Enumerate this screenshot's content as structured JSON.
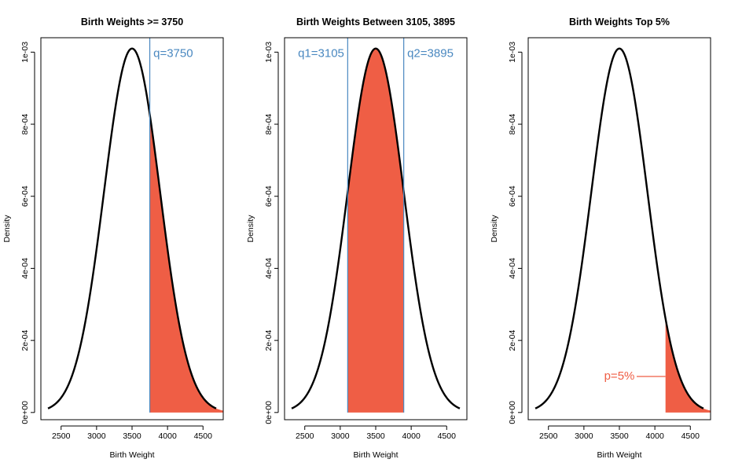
{
  "colors": {
    "fill": "#EF5E45",
    "qline": "#4A88C0",
    "curve": "#000000"
  },
  "chart_data": [
    {
      "type": "area",
      "title": "Birth Weights >= 3750",
      "xlabel": "Birth Weight",
      "ylabel": "Density",
      "distribution": {
        "kind": "normal",
        "mean": 3500,
        "sd": 395
      },
      "curve_x_range": [
        2315,
        4685
      ],
      "xlim": [
        2215,
        4785
      ],
      "ylim": [
        -2e-05,
        0.00104
      ],
      "x_ticks": [
        2500,
        3000,
        3500,
        4000,
        4500
      ],
      "y_ticks": [
        "0e+00",
        "2e-04",
        "4e-04",
        "6e-04",
        "8e-04",
        "1e-03"
      ],
      "y_tick_values": [
        0,
        0.0002,
        0.0004,
        0.0006,
        0.0008,
        0.001
      ],
      "shaded_region": [
        3750,
        4785
      ],
      "vlines": [
        3750
      ],
      "annotations": [
        {
          "text": "q=3750",
          "color": "#4A88C0",
          "x": 4080,
          "y": 0.000995
        }
      ]
    },
    {
      "type": "area",
      "title": "Birth Weights Between 3105, 3895",
      "xlabel": "Birth Weight",
      "ylabel": "Density",
      "distribution": {
        "kind": "normal",
        "mean": 3500,
        "sd": 395
      },
      "curve_x_range": [
        2315,
        4685
      ],
      "xlim": [
        2215,
        4785
      ],
      "ylim": [
        -2e-05,
        0.00104
      ],
      "x_ticks": [
        2500,
        3000,
        3500,
        4000,
        4500
      ],
      "y_ticks": [
        "0e+00",
        "2e-04",
        "4e-04",
        "6e-04",
        "8e-04",
        "1e-03"
      ],
      "y_tick_values": [
        0,
        0.0002,
        0.0004,
        0.0006,
        0.0008,
        0.001
      ],
      "shaded_region": [
        3105,
        3895
      ],
      "vlines": [
        3105,
        3895
      ],
      "annotations": [
        {
          "text": "q1=3105",
          "color": "#4A88C0",
          "x": 2730,
          "y": 0.000995
        },
        {
          "text": "q2=3895",
          "color": "#4A88C0",
          "x": 4270,
          "y": 0.000995
        }
      ]
    },
    {
      "type": "area",
      "title": "Birth Weights Top 5%",
      "xlabel": "Birth Weight",
      "ylabel": "Density",
      "distribution": {
        "kind": "normal",
        "mean": 3500,
        "sd": 395
      },
      "curve_x_range": [
        2315,
        4685
      ],
      "xlim": [
        2215,
        4785
      ],
      "ylim": [
        -2e-05,
        0.00104
      ],
      "x_ticks": [
        2500,
        3000,
        3500,
        4000,
        4500
      ],
      "y_ticks": [
        "0e+00",
        "2e-04",
        "4e-04",
        "6e-04",
        "8e-04",
        "1e-03"
      ],
      "y_tick_values": [
        0,
        0.0002,
        0.0004,
        0.0006,
        0.0008,
        0.001
      ],
      "shaded_region": [
        4150,
        4785
      ],
      "vlines": [],
      "annotations": [
        {
          "text": "p=5%",
          "color": "#EF5E45",
          "x": 3500,
          "y": 0.0001,
          "pointer_to_x": 4150
        }
      ]
    }
  ]
}
